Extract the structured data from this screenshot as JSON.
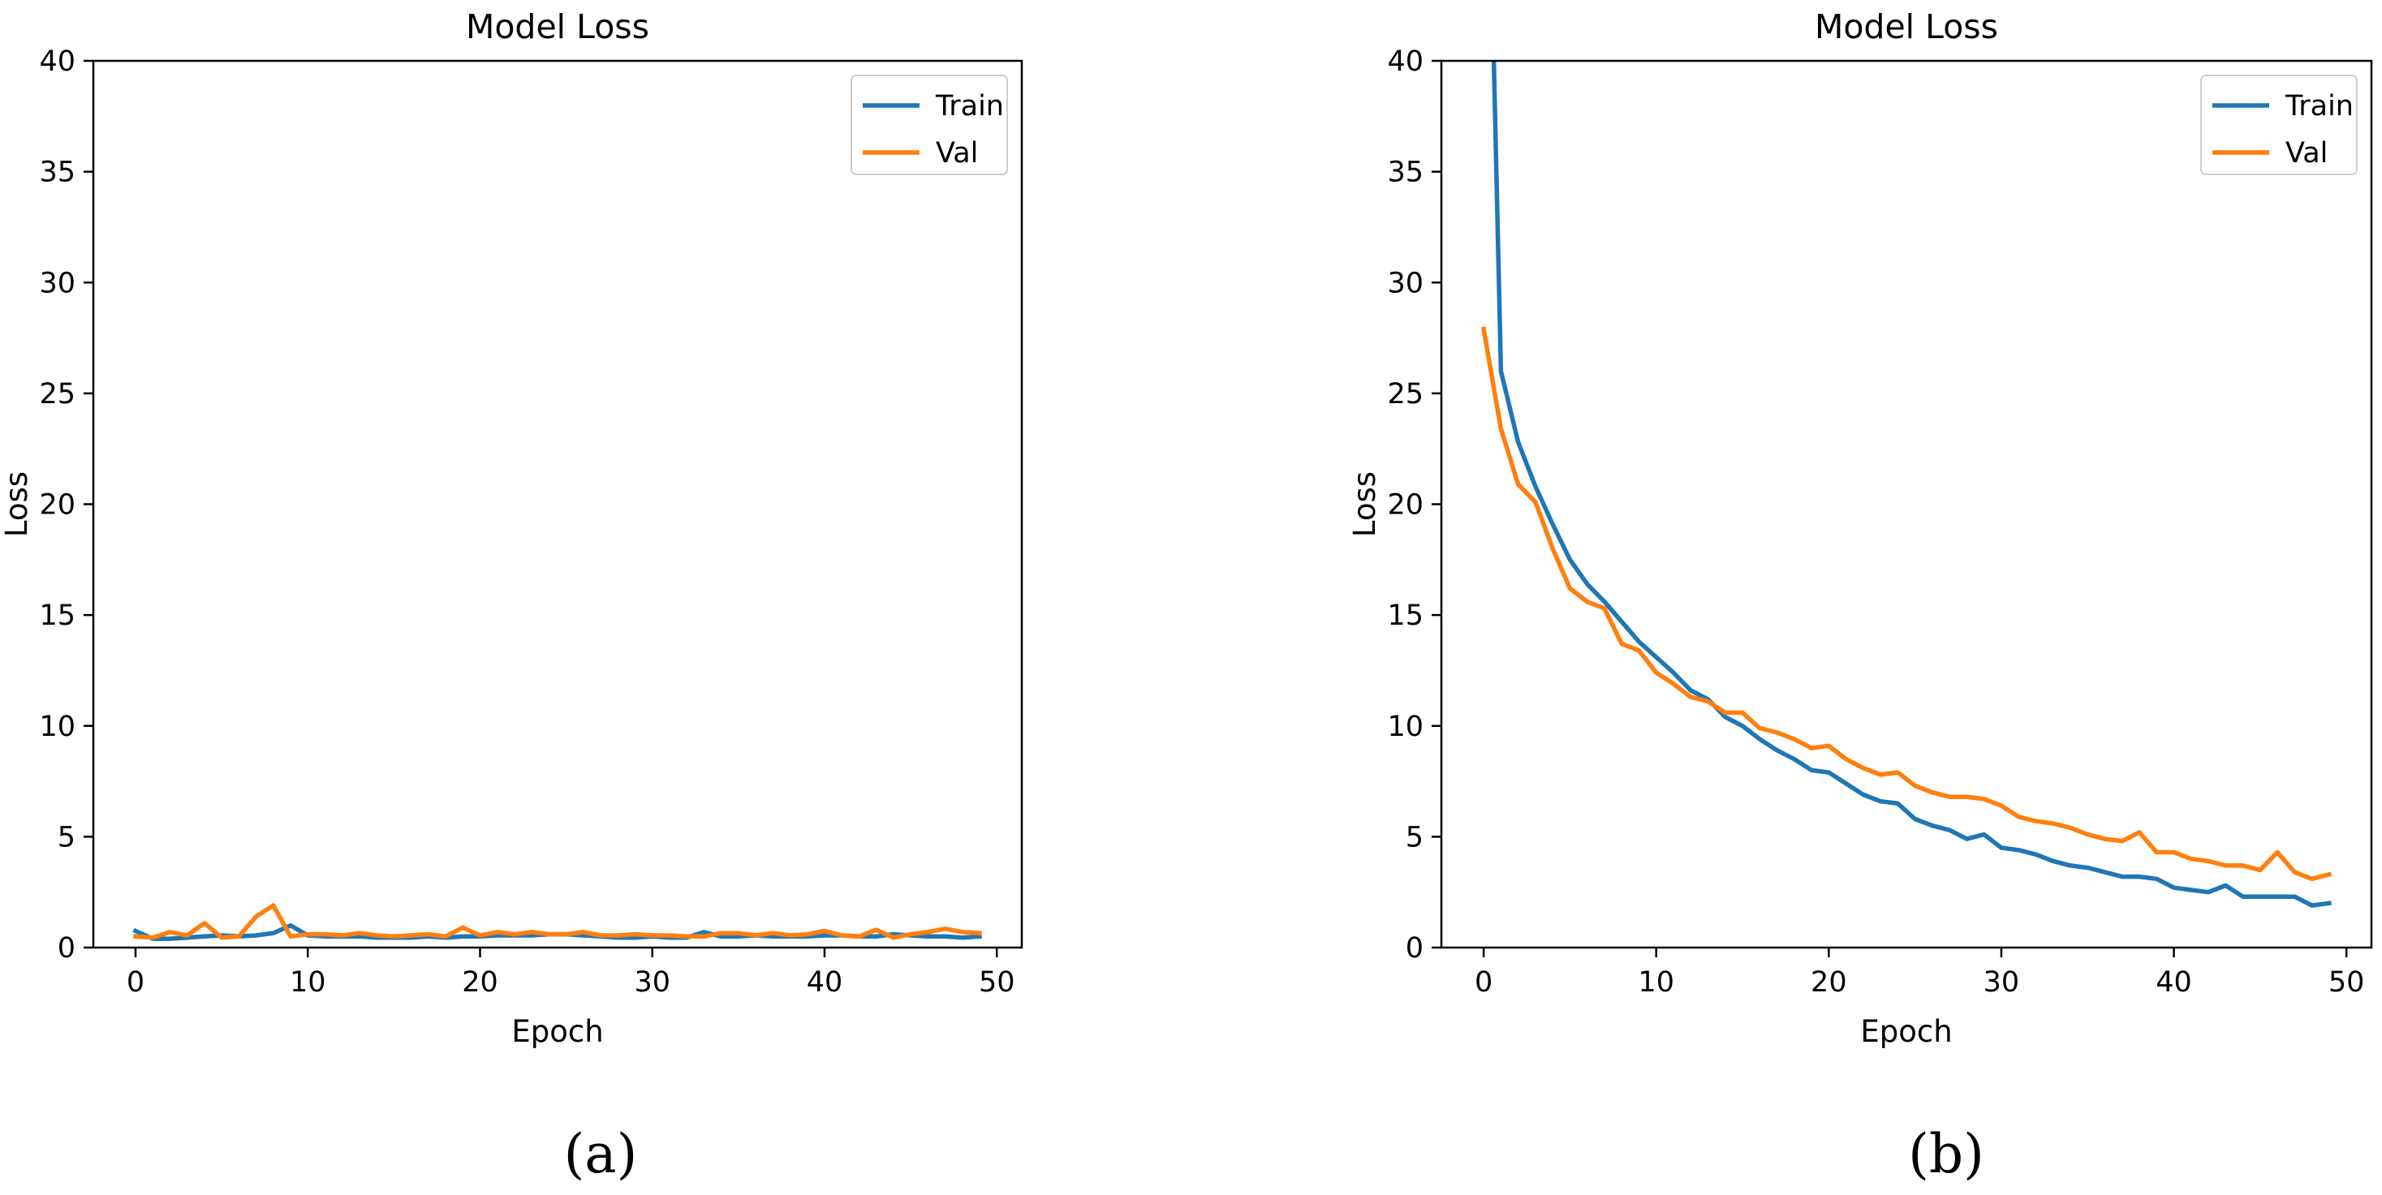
{
  "figure": {
    "panel_labels": [
      "(a)",
      "(b)"
    ]
  },
  "colors": {
    "train": "#1f77b4",
    "val": "#ff7f0e",
    "axis": "#000000",
    "background": "#ffffff"
  },
  "chart_data": [
    {
      "type": "line",
      "title": "Model Loss",
      "xlabel": "Epoch",
      "ylabel": "Loss",
      "xlim": [
        -2.45,
        51.45
      ],
      "ylim": [
        0,
        40
      ],
      "xticks": [
        0,
        10,
        20,
        30,
        40,
        50
      ],
      "yticks": [
        0,
        5,
        10,
        15,
        20,
        25,
        30,
        35,
        40
      ],
      "grid": false,
      "legend": "top-right",
      "x": [
        0,
        1,
        2,
        3,
        4,
        5,
        6,
        7,
        8,
        9,
        10,
        11,
        12,
        13,
        14,
        15,
        16,
        17,
        18,
        19,
        20,
        21,
        22,
        23,
        24,
        25,
        26,
        27,
        28,
        29,
        30,
        31,
        32,
        33,
        34,
        35,
        36,
        37,
        38,
        39,
        40,
        41,
        42,
        43,
        44,
        45,
        46,
        47,
        48,
        49
      ],
      "series": [
        {
          "name": "Train",
          "color": "#1f77b4",
          "values": [
            0.75,
            0.4,
            0.4,
            0.45,
            0.5,
            0.55,
            0.5,
            0.55,
            0.65,
            1.0,
            0.55,
            0.5,
            0.5,
            0.5,
            0.45,
            0.45,
            0.45,
            0.5,
            0.45,
            0.5,
            0.5,
            0.55,
            0.55,
            0.55,
            0.6,
            0.6,
            0.55,
            0.5,
            0.45,
            0.45,
            0.5,
            0.45,
            0.45,
            0.7,
            0.5,
            0.5,
            0.55,
            0.5,
            0.5,
            0.5,
            0.55,
            0.55,
            0.5,
            0.5,
            0.6,
            0.55,
            0.5,
            0.5,
            0.45,
            0.5
          ]
        },
        {
          "name": "Val",
          "color": "#ff7f0e",
          "values": [
            0.5,
            0.45,
            0.7,
            0.55,
            1.1,
            0.45,
            0.5,
            1.4,
            1.9,
            0.5,
            0.6,
            0.6,
            0.55,
            0.65,
            0.55,
            0.5,
            0.55,
            0.6,
            0.5,
            0.9,
            0.55,
            0.7,
            0.6,
            0.7,
            0.6,
            0.6,
            0.7,
            0.55,
            0.55,
            0.6,
            0.55,
            0.55,
            0.5,
            0.5,
            0.65,
            0.65,
            0.55,
            0.65,
            0.55,
            0.6,
            0.75,
            0.55,
            0.5,
            0.8,
            0.45,
            0.6,
            0.7,
            0.85,
            0.7,
            0.65
          ]
        }
      ]
    },
    {
      "type": "line",
      "title": "Model Loss",
      "xlabel": "Epoch",
      "ylabel": "Loss",
      "xlim": [
        -2.45,
        51.45
      ],
      "ylim": [
        0,
        40
      ],
      "xticks": [
        0,
        10,
        20,
        30,
        40,
        50
      ],
      "yticks": [
        0,
        5,
        10,
        15,
        20,
        25,
        30,
        35,
        40
      ],
      "grid": false,
      "legend": "top-right",
      "x": [
        0,
        1,
        2,
        3,
        4,
        5,
        6,
        7,
        8,
        9,
        10,
        11,
        12,
        13,
        14,
        15,
        16,
        17,
        18,
        19,
        20,
        21,
        22,
        23,
        24,
        25,
        26,
        27,
        28,
        29,
        30,
        31,
        32,
        33,
        34,
        35,
        36,
        37,
        38,
        39,
        40,
        41,
        42,
        43,
        44,
        45,
        46,
        47,
        48,
        49
      ],
      "series": [
        {
          "name": "Train",
          "color": "#1f77b4",
          "values": [
            60.0,
            26.0,
            22.8,
            20.8,
            19.1,
            17.5,
            16.4,
            15.6,
            14.7,
            13.8,
            13.1,
            12.4,
            11.6,
            11.2,
            10.4,
            10.0,
            9.4,
            8.9,
            8.5,
            8.0,
            7.9,
            7.4,
            6.9,
            6.6,
            6.5,
            5.8,
            5.5,
            5.3,
            4.9,
            5.1,
            4.5,
            4.4,
            4.2,
            3.9,
            3.7,
            3.6,
            3.4,
            3.2,
            3.2,
            3.1,
            2.7,
            2.6,
            2.5,
            2.8,
            2.3,
            2.3,
            2.3,
            2.3,
            1.9,
            2.0
          ]
        },
        {
          "name": "Val",
          "color": "#ff7f0e",
          "values": [
            27.9,
            23.4,
            20.9,
            20.1,
            18.0,
            16.2,
            15.6,
            15.3,
            13.7,
            13.4,
            12.4,
            11.9,
            11.3,
            11.1,
            10.6,
            10.6,
            9.9,
            9.7,
            9.4,
            9.0,
            9.1,
            8.5,
            8.1,
            7.8,
            7.9,
            7.3,
            7.0,
            6.8,
            6.8,
            6.7,
            6.4,
            5.9,
            5.7,
            5.6,
            5.4,
            5.1,
            4.9,
            4.8,
            5.2,
            4.3,
            4.3,
            4.0,
            3.9,
            3.7,
            3.7,
            3.5,
            4.3,
            3.4,
            3.1,
            3.3
          ]
        }
      ]
    }
  ]
}
